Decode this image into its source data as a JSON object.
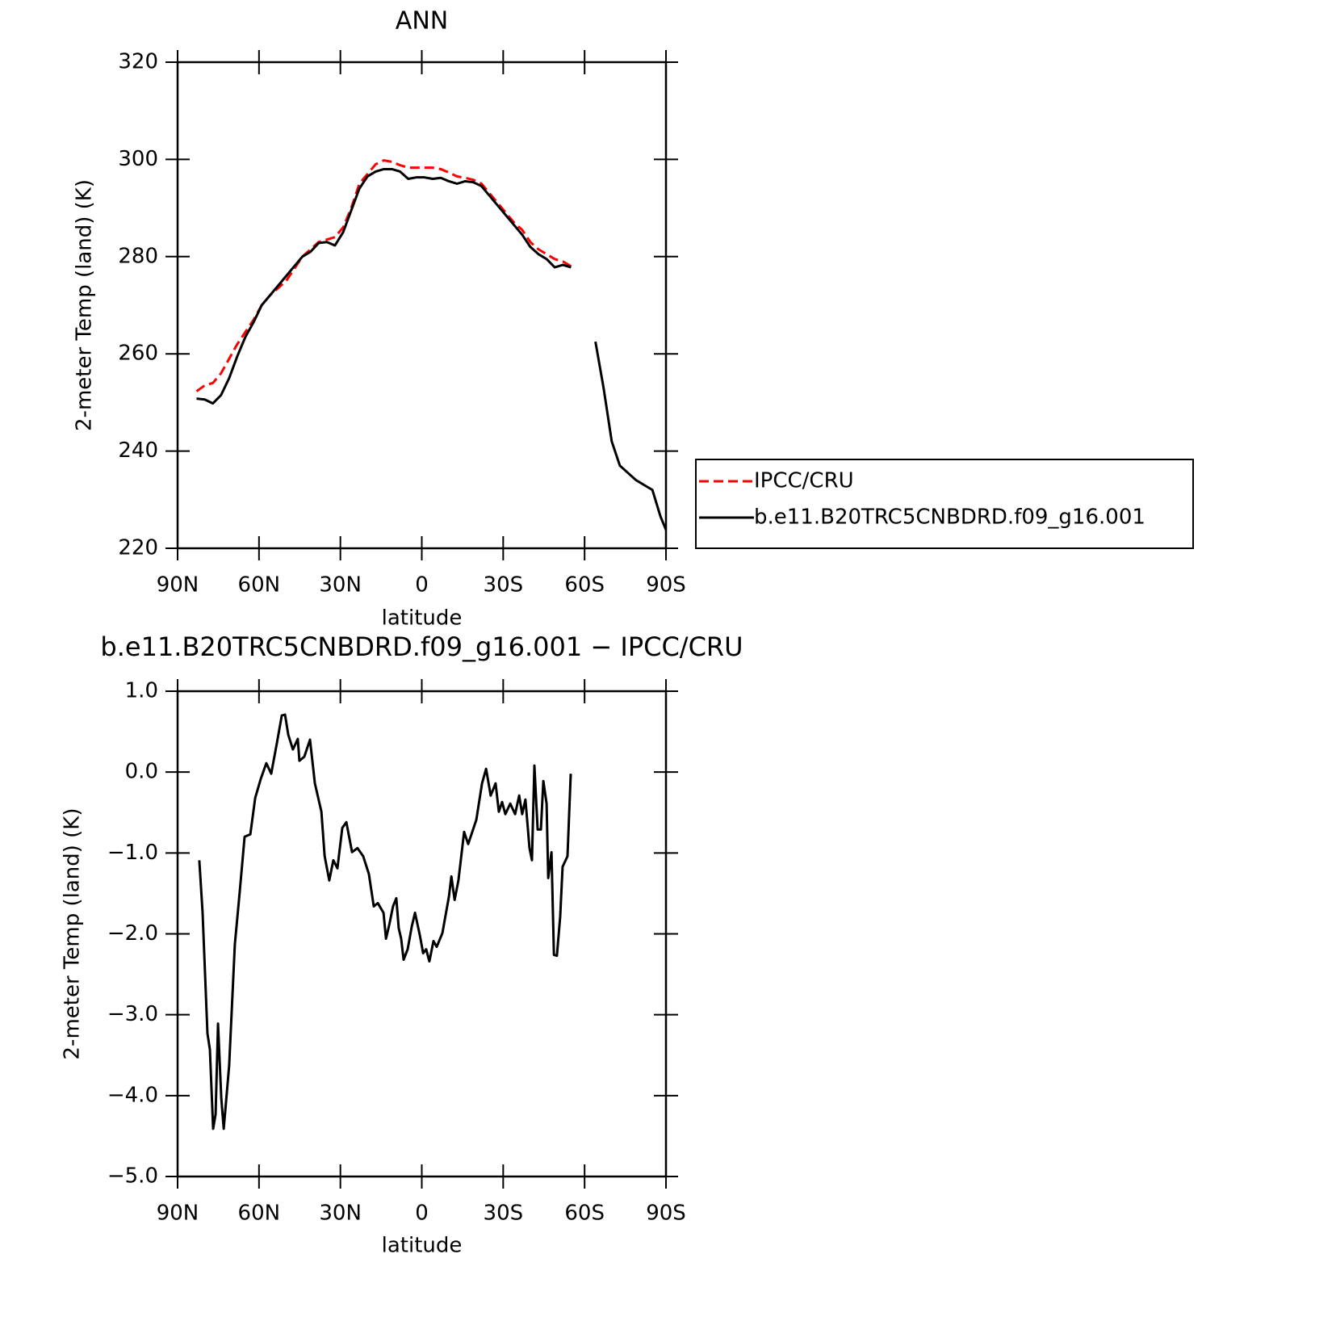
{
  "chart_data": [
    {
      "type": "line",
      "title": "ANN",
      "xlabel": "latitude",
      "ylabel": "2-meter Temp (land) (K)",
      "x": [
        83,
        80,
        77,
        74,
        71,
        68,
        65,
        62,
        59,
        56,
        53,
        50,
        47,
        44,
        41,
        38,
        35,
        32,
        29,
        26,
        23,
        20,
        17,
        14,
        11,
        8,
        5,
        2,
        -1,
        -4,
        -7,
        -10,
        -13,
        -16,
        -19,
        -22,
        -25,
        -28,
        -31,
        -34,
        -37,
        -40,
        -43,
        -46,
        -49,
        -52,
        -55,
        -58,
        -61,
        -64,
        -67,
        -70,
        -73,
        -76,
        -79,
        -82,
        -85,
        -88,
        -90
      ],
      "series": [
        {
          "name": "IPCC/CRU",
          "color": "#ff0000",
          "style": "dashed",
          "values": [
            252.3,
            253.5,
            254,
            256,
            259,
            262,
            264.5,
            267,
            270,
            272,
            273.5,
            275,
            277.5,
            280,
            281.5,
            283,
            283.5,
            284,
            286,
            290,
            295,
            297,
            299,
            299.8,
            299.5,
            298.8,
            298.3,
            298.3,
            298.3,
            298.3,
            298,
            297.3,
            296.5,
            296.2,
            295.8,
            295,
            293,
            291,
            289,
            287,
            285.5,
            283,
            281.5,
            280.5,
            279.5,
            279,
            278,
            null,
            null,
            null,
            null,
            null,
            null,
            null,
            null,
            null,
            null,
            null,
            null
          ]
        },
        {
          "name": "b.e11.B20TRC5CNBDRD.f09_g16.001",
          "color": "#000000",
          "style": "solid",
          "values": [
            250.8,
            250.6,
            249.8,
            251.5,
            255,
            259.5,
            263.5,
            266.5,
            270,
            272,
            274,
            276,
            278,
            280,
            281,
            282.8,
            283,
            282.3,
            285,
            289.5,
            294,
            296.5,
            297.5,
            298,
            298,
            297.5,
            296,
            296.3,
            296.3,
            296,
            296.2,
            295.5,
            295,
            295.5,
            295.3,
            294.5,
            292.5,
            290.5,
            288.5,
            286.5,
            284.5,
            282,
            280.5,
            279.5,
            277.8,
            278.3,
            277.8,
            null,
            null,
            262.5,
            253,
            242,
            237,
            235.5,
            234,
            233,
            232,
            226.5,
            223.8
          ]
        }
      ],
      "xlim": [
        90,
        -90
      ],
      "xticks": [
        {
          "value": 90,
          "label": "90N"
        },
        {
          "value": 60,
          "label": "60N"
        },
        {
          "value": 30,
          "label": "30N"
        },
        0,
        {
          "value": -30,
          "label": "30S"
        },
        {
          "value": -60,
          "label": "60S"
        },
        {
          "value": -90,
          "label": "90S"
        }
      ],
      "ylim": [
        220,
        320
      ],
      "yticks": [
        220,
        240,
        260,
        280,
        300,
        320
      ],
      "legend": "right"
    },
    {
      "type": "line",
      "title": "b.e11.B20TRC5CNBDRD.f09_g16.001 − IPCC/CRU",
      "xlabel": "latitude",
      "ylabel": "2-meter Temp (land) (K)",
      "x": [
        82.0,
        80.8,
        79.0,
        78.1,
        76.9,
        76.0,
        75.1,
        73.9,
        73.0,
        71.0,
        68.9,
        67.1,
        65.3,
        63.2,
        61.4,
        59.4,
        57.3,
        55.5,
        53.4,
        51.6,
        50.4,
        49.2,
        47.5,
        45.7,
        45.1,
        43.3,
        41.2,
        39.4,
        37.0,
        35.8,
        34.1,
        32.6,
        31.1,
        29.3,
        27.8,
        25.7,
        23.7,
        21.6,
        19.5,
        17.7,
        16.2,
        14.1,
        13.2,
        12.0,
        10.6,
        9.4,
        8.5,
        7.6,
        6.7,
        5.2,
        3.7,
        2.5,
        0.7,
        -0.5,
        -1.6,
        -2.8,
        -4.3,
        -5.5,
        -7.6,
        -10.0,
        -10.9,
        -12.1,
        -13.5,
        -15.6,
        -17.1,
        -20.1,
        -22.2,
        -23.7,
        -25.4,
        -27.2,
        -28.4,
        -29.6,
        -30.8,
        -32.6,
        -34.4,
        -35.9,
        -37.0,
        -38.2,
        -39.7,
        -40.6,
        -41.5,
        -42.7,
        -43.9,
        -44.8,
        -46.0,
        -46.6,
        -47.8,
        -48.7,
        -49.8,
        -51.0,
        -51.9,
        -53.7,
        -54.9
      ],
      "series": [
        {
          "color": "#000000",
          "style": "solid",
          "values": [
            -1.09,
            -1.73,
            -3.23,
            -3.43,
            -4.41,
            -4.23,
            -3.11,
            -4.03,
            -4.41,
            -3.63,
            -2.13,
            -1.48,
            -0.8,
            -0.77,
            -0.32,
            -0.09,
            0.11,
            -0.02,
            0.36,
            0.7,
            0.71,
            0.46,
            0.28,
            0.41,
            0.14,
            0.19,
            0.4,
            -0.14,
            -0.49,
            -1.04,
            -1.34,
            -1.09,
            -1.19,
            -0.69,
            -0.62,
            -0.99,
            -0.94,
            -1.04,
            -1.26,
            -1.66,
            -1.62,
            -1.74,
            -2.06,
            -1.89,
            -1.66,
            -1.56,
            -1.93,
            -2.06,
            -2.32,
            -2.19,
            -1.91,
            -1.74,
            -2.02,
            -2.24,
            -2.19,
            -2.34,
            -2.09,
            -2.16,
            -1.99,
            -1.54,
            -1.29,
            -1.58,
            -1.34,
            -0.74,
            -0.89,
            -0.59,
            -0.14,
            0.04,
            -0.29,
            -0.14,
            -0.49,
            -0.37,
            -0.52,
            -0.39,
            -0.52,
            -0.29,
            -0.52,
            -0.34,
            -0.94,
            -1.09,
            0.08,
            -0.71,
            -0.71,
            -0.11,
            -0.39,
            -1.31,
            -0.99,
            -2.26,
            -2.27,
            -1.79,
            -1.17,
            -1.04,
            -0.02
          ]
        }
      ],
      "xlim": [
        90,
        -90
      ],
      "xticks": [
        {
          "value": 90,
          "label": "90N"
        },
        {
          "value": 60,
          "label": "60N"
        },
        {
          "value": 30,
          "label": "30N"
        },
        0,
        {
          "value": -30,
          "label": "30S"
        },
        {
          "value": -60,
          "label": "60S"
        },
        {
          "value": -90,
          "label": "90S"
        }
      ],
      "ylim": [
        -5,
        1
      ],
      "yticks": [
        {
          "value": -5,
          "label": "−5.0"
        },
        {
          "value": -4,
          "label": "−4.0"
        },
        {
          "value": -3,
          "label": "−3.0"
        },
        {
          "value": -2,
          "label": "−2.0"
        },
        {
          "value": -1,
          "label": "−1.0"
        },
        {
          "value": 0,
          "label": "0.0"
        },
        {
          "value": 1,
          "label": "1.0"
        }
      ]
    }
  ]
}
